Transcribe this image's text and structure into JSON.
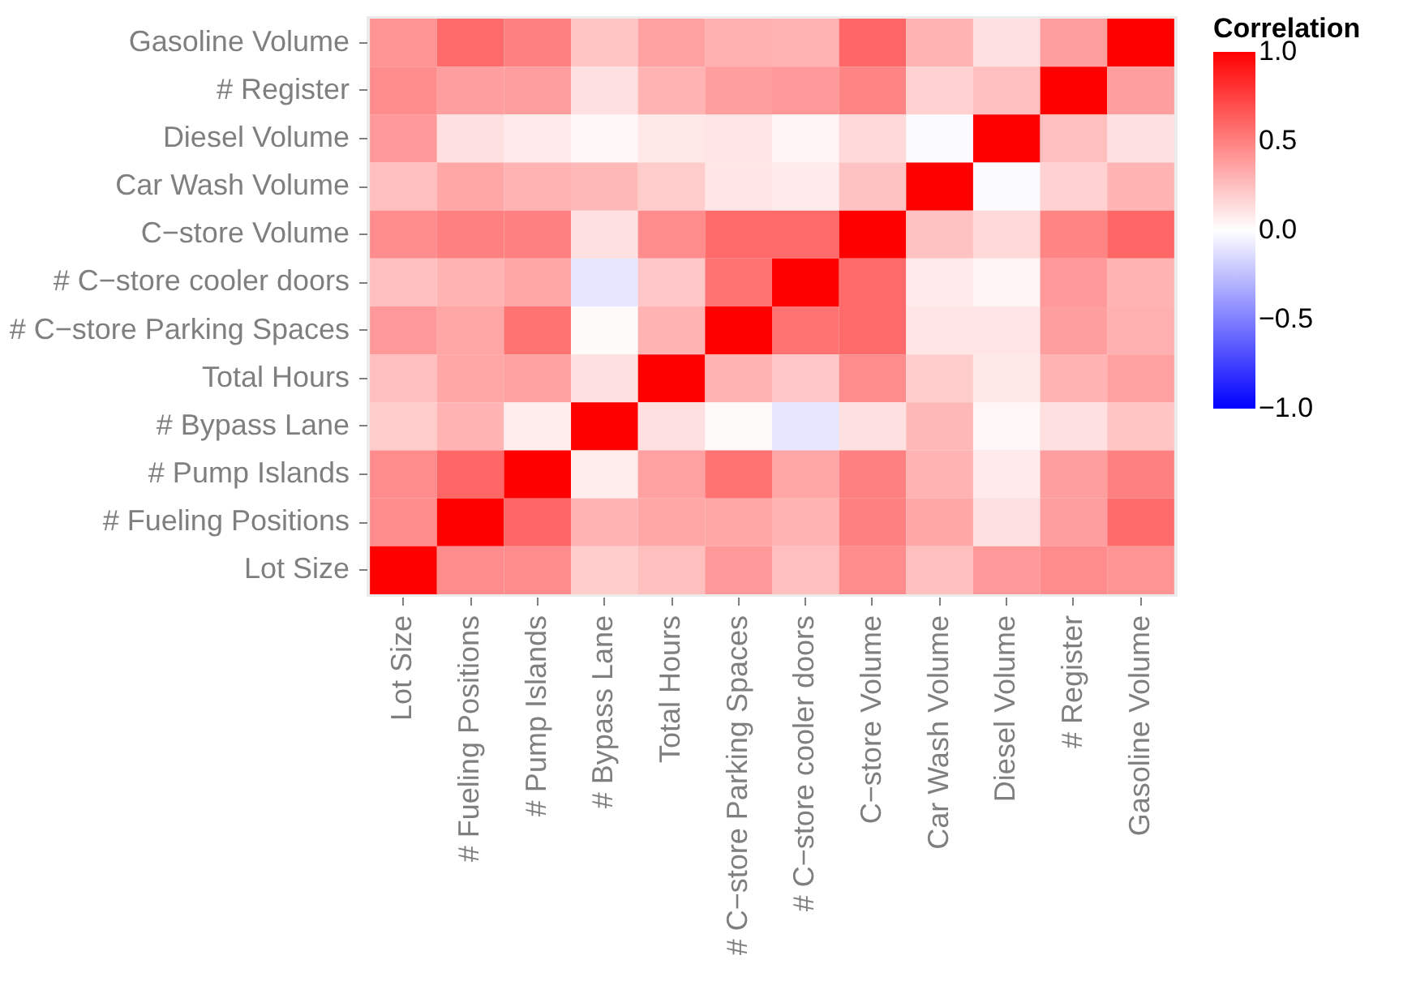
{
  "chart_data": {
    "type": "heatmap",
    "categories": [
      "Lot Size",
      "# Fueling Positions",
      "# Pump Islands",
      "# Bypass Lane",
      "Total Hours",
      "# C−store Parking Spaces",
      "# C−store cooler doors",
      "C−store Volume",
      "Car Wash Volume",
      "Diesel Volume",
      "# Register",
      "Gasoline Volume"
    ],
    "y_categories": [
      "Gasoline Volume",
      "# Register",
      "Diesel Volume",
      "Car Wash Volume",
      "C−store Volume",
      "# C−store cooler doors",
      "# C−store Parking Spaces",
      "Total Hours",
      "# Bypass Lane",
      "# Pump Islands",
      "# Fueling Positions",
      "Lot Size"
    ],
    "cells": [
      [
        0.42,
        0.58,
        0.5,
        0.23,
        0.37,
        0.31,
        0.3,
        0.6,
        0.3,
        0.12,
        0.38,
        1
      ],
      [
        0.45,
        0.38,
        0.38,
        0.12,
        0.3,
        0.38,
        0.4,
        0.48,
        0.18,
        0.25,
        1,
        0.38
      ],
      [
        0.4,
        0.12,
        0.08,
        0.03,
        0.09,
        0.1,
        0.04,
        0.15,
        -0.02,
        1,
        0.25,
        0.12
      ],
      [
        0.25,
        0.35,
        0.3,
        0.28,
        0.2,
        0.1,
        0.08,
        0.24,
        1,
        -0.02,
        0.18,
        0.3
      ],
      [
        0.45,
        0.5,
        0.5,
        0.12,
        0.45,
        0.58,
        0.58,
        1,
        0.24,
        0.15,
        0.48,
        0.6
      ],
      [
        0.25,
        0.3,
        0.35,
        -0.1,
        0.22,
        0.55,
        1,
        0.58,
        0.08,
        0.04,
        0.4,
        0.3
      ],
      [
        0.4,
        0.35,
        0.55,
        0.02,
        0.3,
        1,
        0.55,
        0.58,
        0.1,
        0.1,
        0.38,
        0.31
      ],
      [
        0.25,
        0.35,
        0.37,
        0.12,
        1,
        0.3,
        0.22,
        0.45,
        0.2,
        0.09,
        0.3,
        0.37
      ],
      [
        0.2,
        0.3,
        0.07,
        1,
        0.12,
        0.02,
        -0.1,
        0.12,
        0.28,
        0.03,
        0.12,
        0.23
      ],
      [
        0.45,
        0.6,
        1,
        0.07,
        0.37,
        0.55,
        0.35,
        0.5,
        0.3,
        0.08,
        0.38,
        0.5
      ],
      [
        0.45,
        1,
        0.6,
        0.3,
        0.35,
        0.35,
        0.3,
        0.5,
        0.35,
        0.12,
        0.38,
        0.58
      ],
      [
        1,
        0.45,
        0.45,
        0.2,
        0.25,
        0.4,
        0.25,
        0.45,
        0.25,
        0.4,
        0.45,
        0.42
      ]
    ],
    "clabel": "Correlation",
    "clim": [
      -1,
      1
    ],
    "cticks": [
      {
        "value": -1,
        "label": "−1.0"
      },
      {
        "value": -0.5,
        "label": "−0.5"
      },
      {
        "value": 0,
        "label": "0.0"
      },
      {
        "value": 0.5,
        "label": "0.5"
      },
      {
        "value": 1,
        "label": "1.0"
      }
    ]
  }
}
